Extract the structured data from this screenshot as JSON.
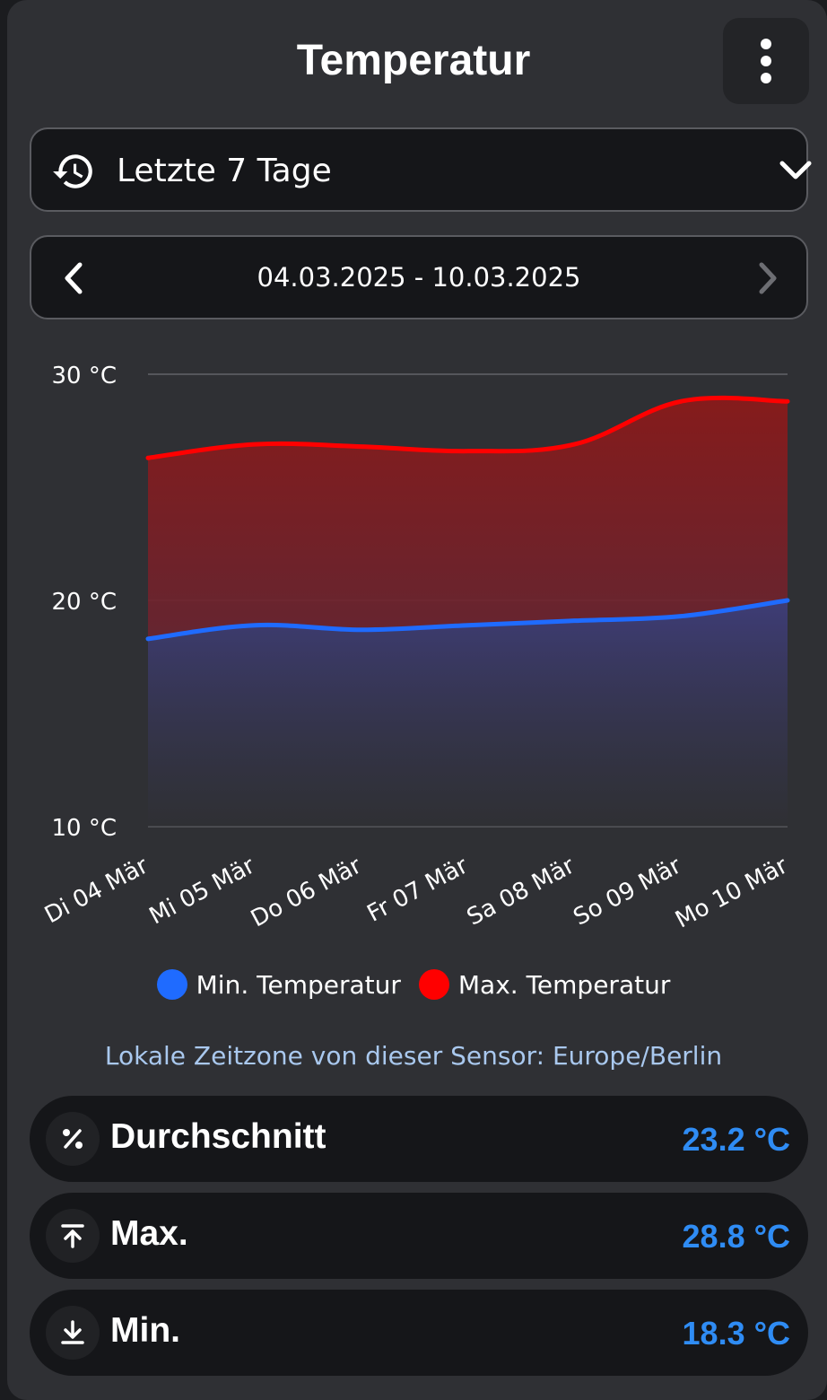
{
  "header": {
    "title": "Temperatur",
    "menu_icon": "more-vertical-icon"
  },
  "period_select": {
    "icon": "history-icon",
    "label": "Letzte 7 Tage",
    "chevron_icon": "chevron-down-icon"
  },
  "date_range": {
    "prev_icon": "chevron-left-icon",
    "label": "04.03.2025 - 10.03.2025",
    "next_icon": "chevron-right-icon"
  },
  "chart_data": {
    "type": "area",
    "categories": [
      "Di 04 Mär",
      "Mi 05 Mär",
      "Do 06 Mär",
      "Fr 07 Mär",
      "Sa 08 Mär",
      "So 09 Mär",
      "Mo 10 Mär"
    ],
    "ylim": [
      10,
      30
    ],
    "yticks": [
      10,
      20,
      30
    ],
    "ytick_labels": [
      "10 °C",
      "20 °C",
      "30 °C"
    ],
    "grid": true,
    "legend_position": "bottom",
    "series": [
      {
        "name": "Min. Temperatur",
        "color": "#1f6bff",
        "values": [
          18.3,
          18.9,
          18.7,
          18.9,
          19.1,
          19.3,
          20.0
        ]
      },
      {
        "name": "Max. Temperatur",
        "color": "#ff0000",
        "values": [
          26.3,
          26.9,
          26.8,
          26.6,
          26.9,
          28.8,
          28.8
        ]
      }
    ]
  },
  "timezone_note": "Lokale Zeitzone von dieser Sensor: Europe/Berlin",
  "stats": [
    {
      "icon": "percent-icon",
      "label": "Durchschnitt",
      "value": "23.2 °C"
    },
    {
      "icon": "arrow-up-to-line-icon",
      "label": "Max.",
      "value": "28.8 °C"
    },
    {
      "icon": "arrow-down-to-line-icon",
      "label": "Min.",
      "value": "18.3 °C"
    }
  ]
}
